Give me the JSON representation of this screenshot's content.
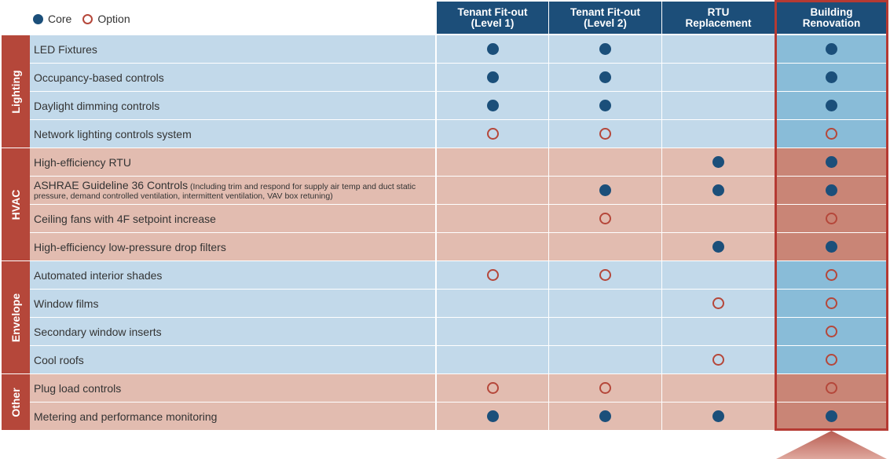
{
  "legend": {
    "core_label": "Core",
    "option_label": "Option"
  },
  "columns": [
    "Tenant Fit-out\n(Level 1)",
    "Tenant Fit-out\n(Level 2)",
    "RTU\nReplacement",
    "Building\nRenovation"
  ],
  "groups": [
    {
      "name": "Lighting",
      "rows": [
        {
          "label": "LED Fixtures",
          "marks": [
            "core",
            "core",
            "",
            "core"
          ]
        },
        {
          "label": "Occupancy-based controls",
          "marks": [
            "core",
            "core",
            "",
            "core"
          ]
        },
        {
          "label": "Daylight dimming controls",
          "marks": [
            "core",
            "core",
            "",
            "core"
          ]
        },
        {
          "label": "Network lighting controls system",
          "marks": [
            "option",
            "option",
            "",
            "option"
          ]
        }
      ]
    },
    {
      "name": "HVAC",
      "rows": [
        {
          "label": "High-efficiency RTU",
          "marks": [
            "",
            "",
            "core",
            "core"
          ]
        },
        {
          "label": "ASHRAE Guideline 36 Controls",
          "note": "(Including trim and respond for supply air temp and duct static pressure, demand controlled ventilation, intermittent ventilation, VAV box retuning)",
          "marks": [
            "",
            "core",
            "core",
            "core"
          ]
        },
        {
          "label": "Ceiling fans with 4F setpoint increase",
          "marks": [
            "",
            "option",
            "",
            "option"
          ]
        },
        {
          "label": "High-efficiency low-pressure drop filters",
          "marks": [
            "",
            "",
            "core",
            "core"
          ]
        }
      ]
    },
    {
      "name": "Envelope",
      "rows": [
        {
          "label": "Automated interior shades",
          "marks": [
            "option",
            "option",
            "",
            "option"
          ]
        },
        {
          "label": "Window films",
          "marks": [
            "",
            "",
            "option",
            "option"
          ]
        },
        {
          "label": "Secondary window inserts",
          "marks": [
            "",
            "",
            "",
            "option"
          ]
        },
        {
          "label": "Cool roofs",
          "marks": [
            "",
            "",
            "option",
            "option"
          ]
        }
      ]
    },
    {
      "name": "Other",
      "rows": [
        {
          "label": "Plug load controls",
          "marks": [
            "option",
            "option",
            "",
            "option"
          ]
        },
        {
          "label": "Metering and performance monitoring",
          "marks": [
            "core",
            "core",
            "core",
            "core"
          ]
        }
      ]
    }
  ],
  "colors": {
    "header_bg": "#1c4e79",
    "core": "#1b4f7a",
    "option": "#b5473a",
    "blue_row": "#c2d9ea",
    "blue_row_highlight": "#89bcd8",
    "red_row": "#e2bcb0",
    "red_row_highlight": "#c98576",
    "group_label_bg": "#b5473a",
    "highlight_border": "#b53a33"
  }
}
